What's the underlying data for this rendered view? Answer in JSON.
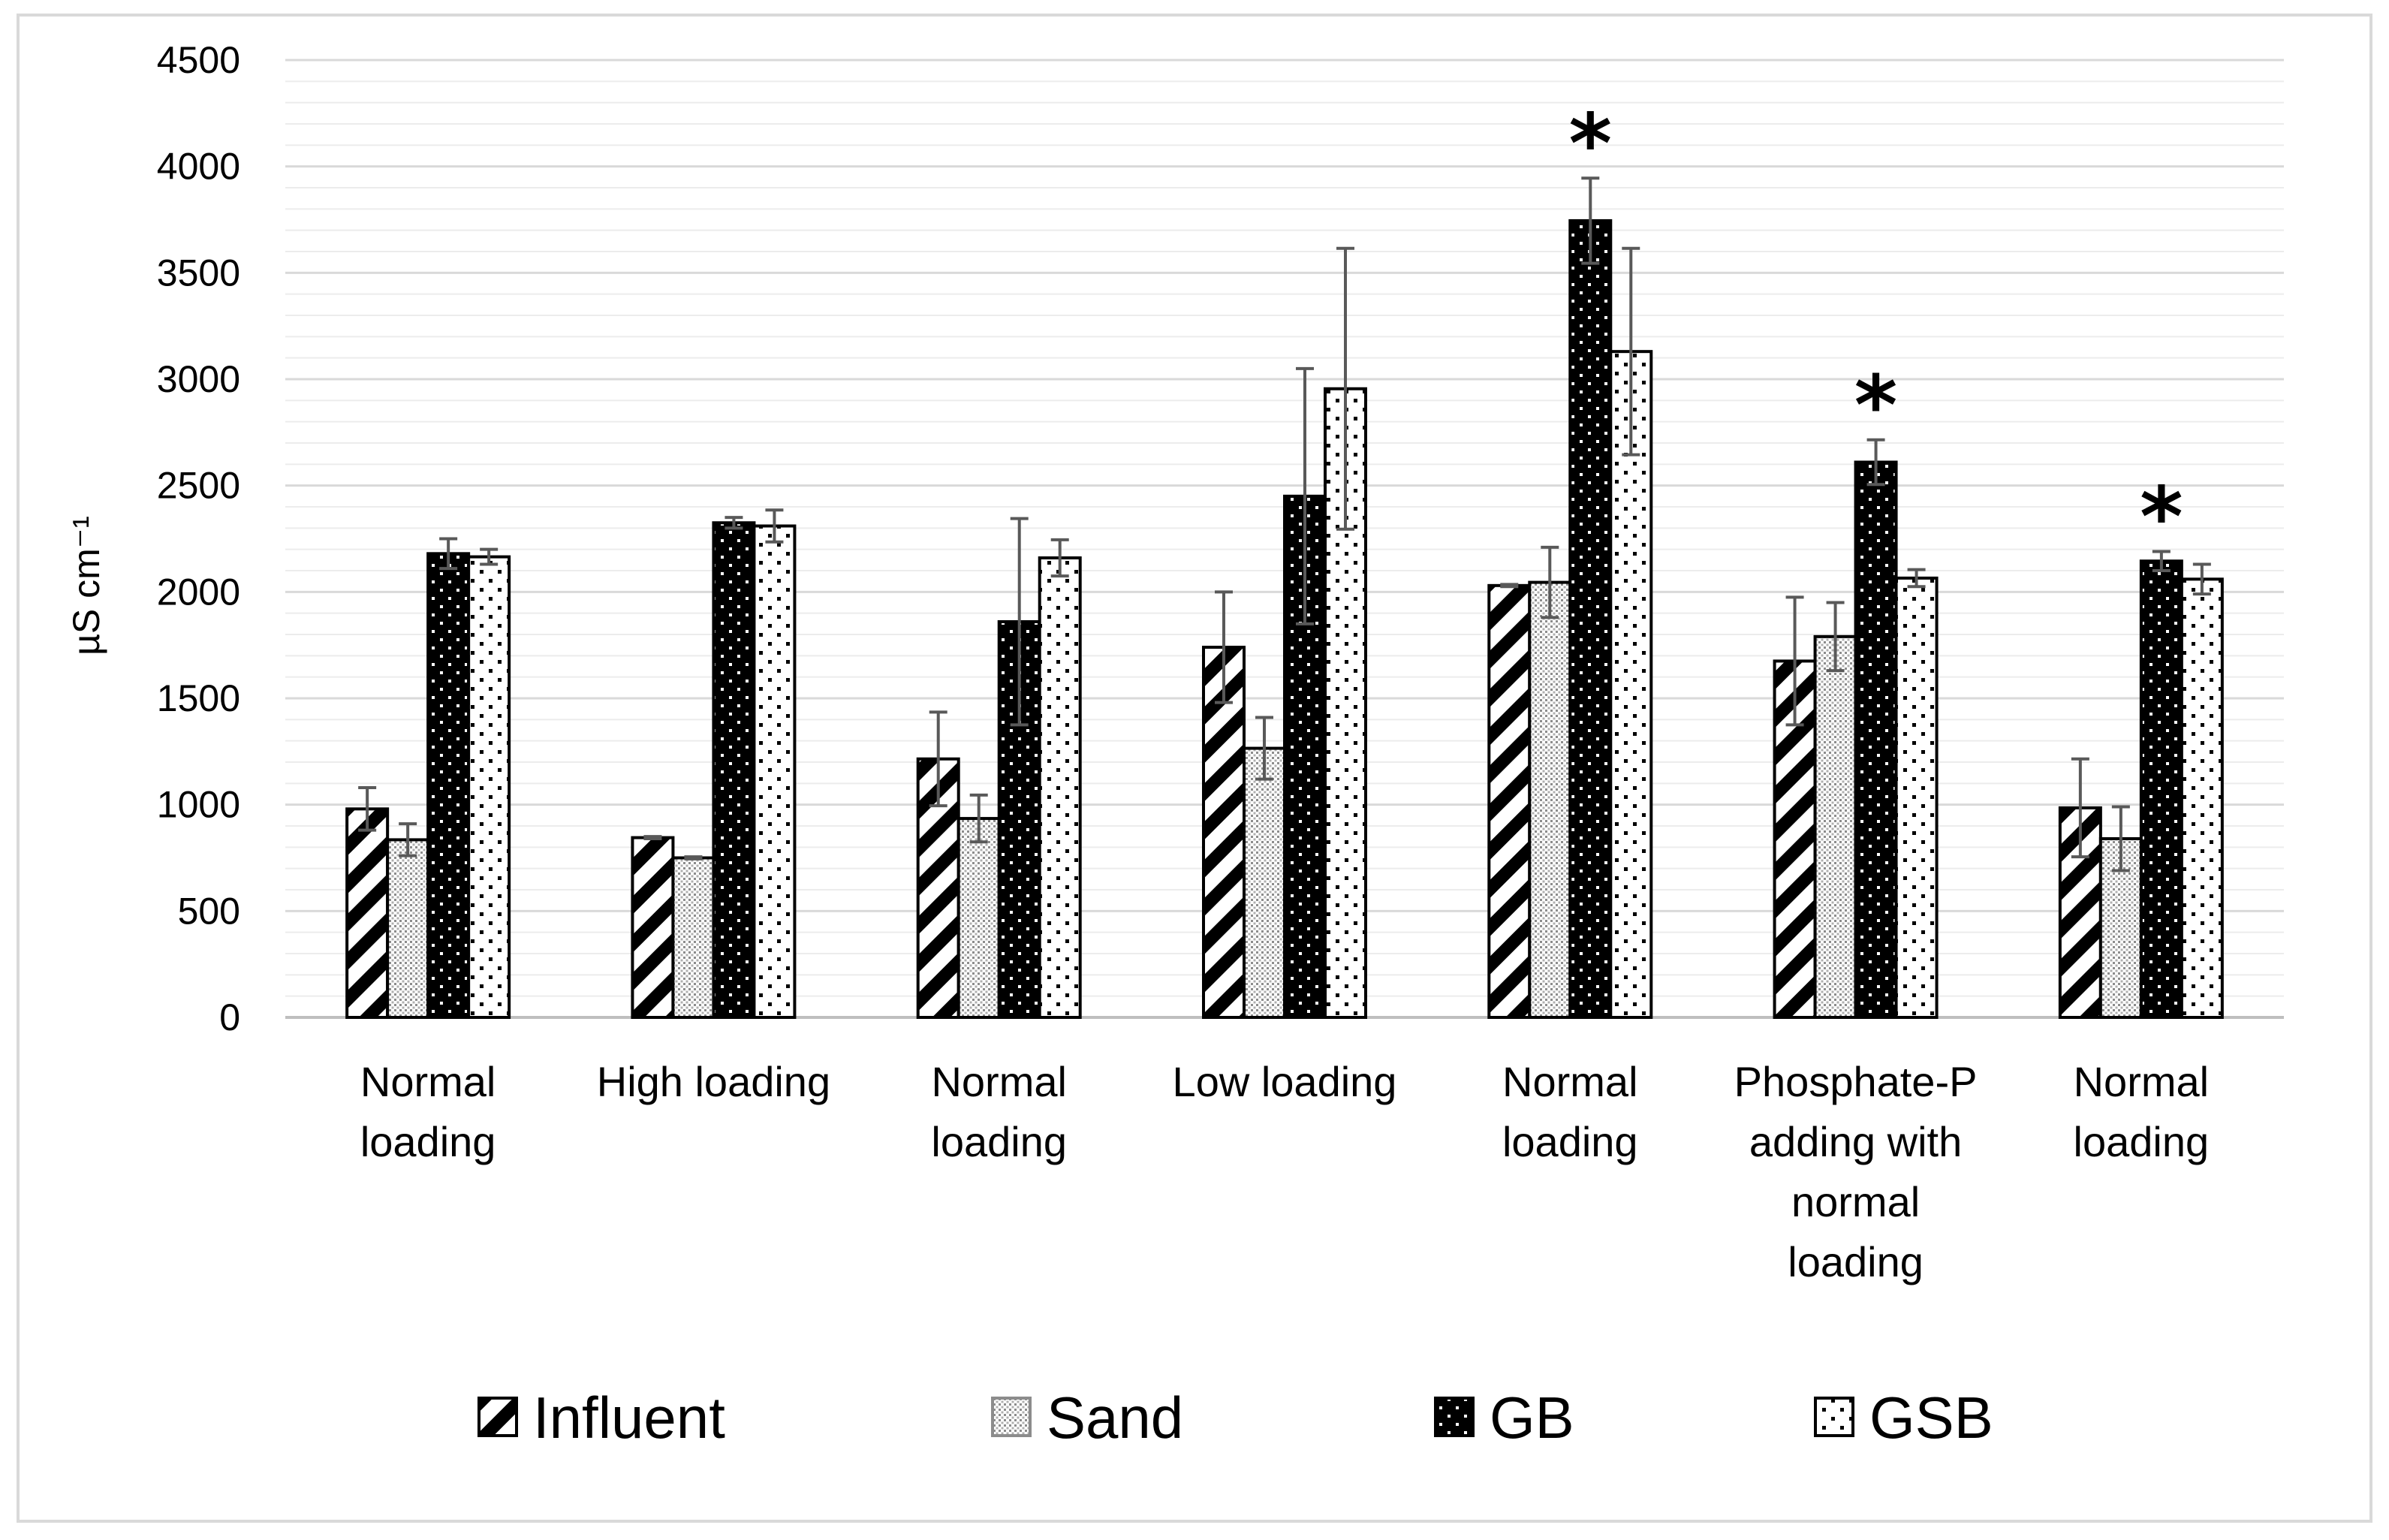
{
  "chart_data": {
    "type": "bar",
    "title": "",
    "xlabel": "",
    "ylabel": "µS cm⁻¹",
    "ylim": [
      0,
      4500
    ],
    "yticks": [
      0,
      500,
      1000,
      1500,
      2000,
      2500,
      3000,
      3500,
      4000,
      4500
    ],
    "categories": [
      [
        "Normal",
        "loading"
      ],
      [
        "High loading"
      ],
      [
        "Normal",
        "loading"
      ],
      [
        "Low loading"
      ],
      [
        "Normal",
        "loading"
      ],
      [
        "Phosphate-P",
        "adding with",
        "normal",
        "loading"
      ],
      [
        "Normal",
        "loading"
      ]
    ],
    "series": [
      {
        "name": "Influent",
        "values": [
          980,
          845,
          1215,
          1740,
          2030,
          1675,
          985
        ],
        "errors": [
          100,
          5,
          220,
          260,
          5,
          300,
          230
        ]
      },
      {
        "name": "Sand",
        "values": [
          835,
          750,
          935,
          1265,
          2045,
          1790,
          840
        ],
        "errors": [
          75,
          5,
          110,
          145,
          165,
          160,
          150
        ]
      },
      {
        "name": "GB",
        "values": [
          2180,
          2325,
          1860,
          2450,
          3745,
          2610,
          2145
        ],
        "errors": [
          70,
          25,
          485,
          600,
          200,
          105,
          45
        ]
      },
      {
        "name": "GSB",
        "values": [
          2165,
          2310,
          2160,
          2955,
          3130,
          2065,
          2060
        ],
        "errors": [
          35,
          75,
          85,
          660,
          485,
          40,
          70
        ]
      }
    ],
    "significance": [
      {
        "category_index": 4,
        "series": "GB",
        "label": "*"
      },
      {
        "category_index": 5,
        "series": "GB",
        "label": "*"
      },
      {
        "category_index": 6,
        "series": "GB",
        "label": "*"
      }
    ],
    "legend_position": "bottom",
    "grid": true
  },
  "colors": {
    "axis": "#bfbfbf",
    "grid_major": "#d9d9d9",
    "grid_minor": "#ececec",
    "error_bar": "#595959",
    "bar_outline": "#000000",
    "border": "#d9d9d9"
  }
}
